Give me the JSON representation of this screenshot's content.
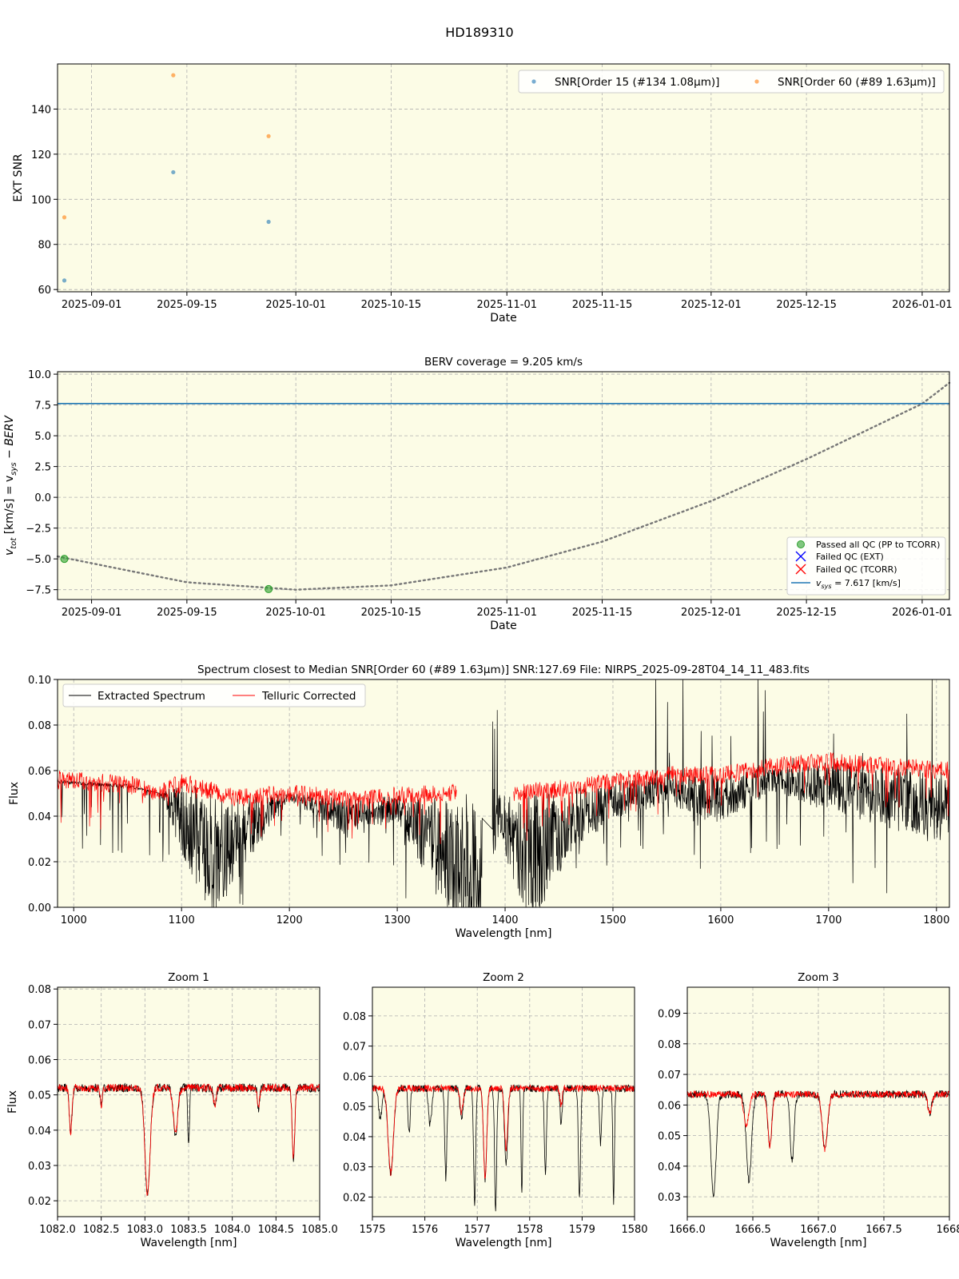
{
  "figure_title": "HD189310",
  "colors": {
    "plot_bg": "#fcfce6",
    "snr_order15": "#1f77b4",
    "snr_order60": "#ff7f0e",
    "passed": "#2ca02c",
    "failed_ext": "#0000ff",
    "failed_tcorr": "#ff0000",
    "vsys_line": "#1f77b4",
    "extracted": "#000000",
    "telluric": "#ff0000",
    "grid": "#b0b0b0"
  },
  "chart_data": [
    {
      "type": "scatter",
      "xlabel": "Date",
      "ylabel": "EXT SNR",
      "xlim": [
        "2025-08-27",
        "2026-01-05"
      ],
      "ylim": [
        59,
        160
      ],
      "x_ticks": [
        "2025-09-01",
        "2025-09-15",
        "2025-10-01",
        "2025-10-15",
        "2025-11-01",
        "2025-11-15",
        "2025-12-01",
        "2025-12-15",
        "2026-01-01"
      ],
      "y_ticks": [
        "60",
        "80",
        "100",
        "120",
        "140"
      ],
      "legend_position": "upper right",
      "series": [
        {
          "name": "SNR[Order 15 (#134 1.08μm)]",
          "color": "#1f77b4",
          "x": [
            "2025-08-28",
            "2025-09-13",
            "2025-09-27"
          ],
          "y": [
            64,
            112,
            90
          ]
        },
        {
          "name": "SNR[Order 60 (#89 1.63μm)]",
          "color": "#ff7f0e",
          "x": [
            "2025-08-28",
            "2025-09-13",
            "2025-09-27"
          ],
          "y": [
            92,
            155,
            128
          ]
        }
      ]
    },
    {
      "type": "line",
      "title": "BERV coverage = 9.205 km/s",
      "xlabel": "Date",
      "ylabel_parts": [
        "v",
        "tot",
        " [km/s] = v",
        "sys",
        " − BERV"
      ],
      "xlim": [
        "2025-08-27",
        "2026-01-05"
      ],
      "ylim": [
        -8.3,
        10.2
      ],
      "x_ticks": [
        "2025-09-01",
        "2025-09-15",
        "2025-10-01",
        "2025-10-15",
        "2025-11-01",
        "2025-11-15",
        "2025-12-01",
        "2025-12-15",
        "2026-01-01"
      ],
      "y_ticks": [
        "10.0",
        "7.5",
        "5.0",
        "2.5",
        "0.0",
        "−2.5",
        "−5.0",
        "−7.5"
      ],
      "legend_position": "lower right",
      "berv_curve": {
        "x": [
          "2025-08-27",
          "2025-09-15",
          "2025-10-01",
          "2025-10-15",
          "2025-11-01",
          "2025-11-15",
          "2025-12-01",
          "2025-12-15",
          "2026-01-01",
          "2026-01-05"
        ],
        "y": [
          -4.8,
          -6.9,
          -7.5,
          -7.15,
          -5.7,
          -3.6,
          -0.3,
          3.1,
          7.6,
          9.3
        ]
      },
      "passed_points": {
        "x": [
          "2025-08-28",
          "2025-09-27"
        ],
        "y": [
          -5.0,
          -7.45
        ]
      },
      "vsys": 7.617,
      "legend": {
        "passed": "Passed all QC (PP to TCORR)",
        "failed_ext": "Failed QC (EXT)",
        "failed_tcorr": "Failed QC (TCORR)",
        "vsys_parts": [
          "v",
          "sys",
          " = 7.617 [km/s]"
        ]
      }
    },
    {
      "type": "line",
      "title": "Spectrum closest to Median SNR[Order 60 (#89 1.63μm)]     SNR:127.69     File: NIRPS_2025-09-28T04_14_11_483.fits",
      "xlabel": "Wavelength [nm]",
      "ylabel": "Flux",
      "xlim": [
        985,
        1812
      ],
      "ylim": [
        0.0,
        0.1
      ],
      "x_ticks": [
        "1000",
        "1100",
        "1200",
        "1300",
        "1400",
        "1500",
        "1600",
        "1700",
        "1800"
      ],
      "y_ticks": [
        "0.00",
        "0.02",
        "0.04",
        "0.06",
        "0.08",
        "0.10"
      ],
      "legend_position": "upper left",
      "series": [
        {
          "name": "Extracted Spectrum",
          "color": "#000000",
          "x": [
            985,
            1050,
            1080,
            1100,
            1130,
            1160,
            1200,
            1250,
            1300,
            1340,
            1370,
            1395,
            1420,
            1460,
            1500,
            1550,
            1600,
            1650,
            1700,
            1750,
            1812
          ],
          "y": [
            0.055,
            0.053,
            0.05,
            0.035,
            0.015,
            0.03,
            0.048,
            0.038,
            0.042,
            0.02,
            0.005,
            0.04,
            0.01,
            0.035,
            0.045,
            0.05,
            0.045,
            0.055,
            0.05,
            0.045,
            0.04
          ]
        },
        {
          "name": "Telluric Corrected",
          "color": "#ff0000",
          "x": [
            985,
            1050,
            1080,
            1100,
            1150,
            1200,
            1250,
            1300,
            1350,
            1410,
            1450,
            1500,
            1550,
            1600,
            1650,
            1700,
            1750,
            1812
          ],
          "y": [
            0.056,
            0.054,
            0.05,
            0.055,
            0.048,
            0.05,
            0.048,
            0.049,
            0.05,
            0.05,
            0.052,
            0.055,
            0.058,
            0.058,
            0.062,
            0.064,
            0.062,
            0.06
          ]
        }
      ]
    },
    {
      "type": "line",
      "title": "Zoom 1",
      "xlabel": "Wavelength [nm]",
      "ylabel": "Flux",
      "xlim": [
        1082.0,
        1085.0
      ],
      "ylim": [
        0.0155,
        0.0805
      ],
      "x_ticks": [
        "1082.0",
        "1082.5",
        "1083.0",
        "1083.5",
        "1084.0",
        "1084.5",
        "1085.0"
      ],
      "y_ticks": [
        "0.02",
        "0.03",
        "0.04",
        "0.05",
        "0.06",
        "0.07",
        "0.08"
      ],
      "continuum": 0.052,
      "extracted_lines": [
        {
          "x": 1082.15,
          "depth": 0.013,
          "w": 0.015
        },
        {
          "x": 1082.5,
          "depth": 0.005,
          "w": 0.012
        },
        {
          "x": 1083.03,
          "depth": 0.03,
          "w": 0.03
        },
        {
          "x": 1083.35,
          "depth": 0.013,
          "w": 0.025
        },
        {
          "x": 1083.5,
          "depth": 0.016,
          "w": 0.01
        },
        {
          "x": 1083.8,
          "depth": 0.005,
          "w": 0.015
        },
        {
          "x": 1084.3,
          "depth": 0.006,
          "w": 0.012
        },
        {
          "x": 1084.7,
          "depth": 0.02,
          "w": 0.015
        }
      ],
      "telluric_lines": [
        {
          "x": 1082.15,
          "depth": 0.013,
          "w": 0.015
        },
        {
          "x": 1082.5,
          "depth": 0.005,
          "w": 0.012
        },
        {
          "x": 1083.03,
          "depth": 0.03,
          "w": 0.03
        },
        {
          "x": 1083.35,
          "depth": 0.013,
          "w": 0.025
        },
        {
          "x": 1083.8,
          "depth": 0.005,
          "w": 0.015
        },
        {
          "x": 1084.3,
          "depth": 0.006,
          "w": 0.012
        },
        {
          "x": 1084.7,
          "depth": 0.02,
          "w": 0.015
        }
      ]
    },
    {
      "type": "line",
      "title": "Zoom 2",
      "xlabel": "Wavelength [nm]",
      "ylabel": "",
      "xlim": [
        1575,
        1580
      ],
      "ylim": [
        0.0135,
        0.0895
      ],
      "x_ticks": [
        "1575",
        "1576",
        "1577",
        "1578",
        "1579",
        "1580"
      ],
      "y_ticks": [
        "0.02",
        "0.03",
        "0.04",
        "0.05",
        "0.06",
        "0.07",
        "0.08"
      ],
      "continuum": 0.056,
      "extracted_lines": [
        {
          "x": 1575.15,
          "depth": 0.01,
          "w": 0.03
        },
        {
          "x": 1575.35,
          "depth": 0.028,
          "w": 0.05
        },
        {
          "x": 1575.7,
          "depth": 0.015,
          "w": 0.02
        },
        {
          "x": 1576.1,
          "depth": 0.012,
          "w": 0.03
        },
        {
          "x": 1576.4,
          "depth": 0.03,
          "w": 0.02
        },
        {
          "x": 1576.7,
          "depth": 0.01,
          "w": 0.03
        },
        {
          "x": 1576.95,
          "depth": 0.038,
          "w": 0.02
        },
        {
          "x": 1577.15,
          "depth": 0.03,
          "w": 0.03
        },
        {
          "x": 1577.35,
          "depth": 0.04,
          "w": 0.02
        },
        {
          "x": 1577.55,
          "depth": 0.025,
          "w": 0.03
        },
        {
          "x": 1577.85,
          "depth": 0.035,
          "w": 0.015
        },
        {
          "x": 1578.3,
          "depth": 0.028,
          "w": 0.02
        },
        {
          "x": 1578.6,
          "depth": 0.012,
          "w": 0.02
        },
        {
          "x": 1578.95,
          "depth": 0.036,
          "w": 0.02
        },
        {
          "x": 1579.35,
          "depth": 0.018,
          "w": 0.02
        },
        {
          "x": 1579.6,
          "depth": 0.038,
          "w": 0.015
        }
      ],
      "telluric_lines": [
        {
          "x": 1575.35,
          "depth": 0.028,
          "w": 0.05
        },
        {
          "x": 1576.7,
          "depth": 0.008,
          "w": 0.03
        },
        {
          "x": 1577.15,
          "depth": 0.03,
          "w": 0.03
        },
        {
          "x": 1577.55,
          "depth": 0.02,
          "w": 0.03
        },
        {
          "x": 1578.6,
          "depth": 0.006,
          "w": 0.02
        }
      ]
    },
    {
      "type": "line",
      "title": "Zoom 3",
      "xlabel": "Wavelength [nm]",
      "ylabel": "",
      "xlim": [
        1666.0,
        1668.0
      ],
      "ylim": [
        0.0235,
        0.0985
      ],
      "x_ticks": [
        "1666.0",
        "1666.5",
        "1667.0",
        "1667.5",
        "1668"
      ],
      "y_ticks": [
        "0.03",
        "0.04",
        "0.05",
        "0.06",
        "0.07",
        "0.08",
        "0.09"
      ],
      "continuum": 0.0635,
      "extracted_lines": [
        {
          "x": 1666.2,
          "depth": 0.033,
          "w": 0.02
        },
        {
          "x": 1666.47,
          "depth": 0.028,
          "w": 0.02
        },
        {
          "x": 1666.63,
          "depth": 0.017,
          "w": 0.015
        },
        {
          "x": 1666.8,
          "depth": 0.022,
          "w": 0.015
        },
        {
          "x": 1667.05,
          "depth": 0.018,
          "w": 0.02
        },
        {
          "x": 1667.85,
          "depth": 0.006,
          "w": 0.015
        }
      ],
      "telluric_lines": [
        {
          "x": 1666.45,
          "depth": 0.01,
          "w": 0.02
        },
        {
          "x": 1666.63,
          "depth": 0.017,
          "w": 0.015
        },
        {
          "x": 1667.05,
          "depth": 0.018,
          "w": 0.02
        },
        {
          "x": 1667.85,
          "depth": 0.006,
          "w": 0.015
        }
      ]
    }
  ]
}
